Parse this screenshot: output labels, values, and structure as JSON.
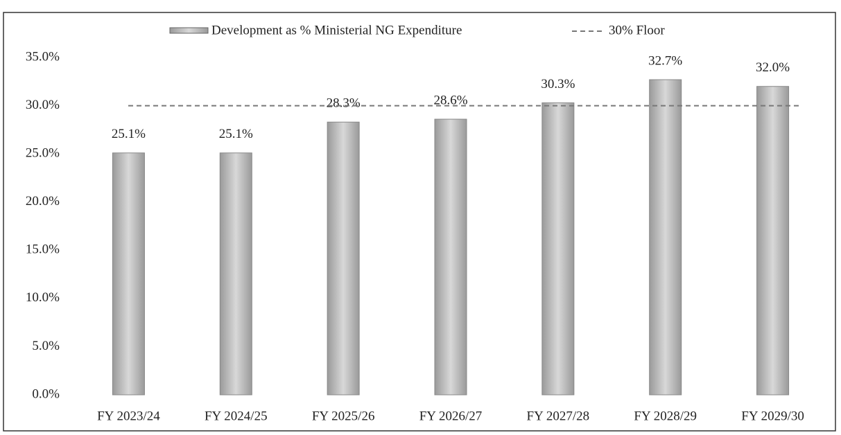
{
  "chart_data": {
    "type": "bar",
    "categories": [
      "FY 2023/24",
      "FY 2024/25",
      "FY 2025/26",
      "FY 2026/27",
      "FY 2027/28",
      "FY 2028/29",
      "FY 2029/30"
    ],
    "series": [
      {
        "name": "Development as % Ministerial NG Expenditure",
        "color": "#9a9a9a",
        "values": [
          25.1,
          25.1,
          28.3,
          28.6,
          30.3,
          32.7,
          32.0
        ],
        "value_labels": [
          "25.1%",
          "25.1%",
          "28.3%",
          "28.6%",
          "30.3%",
          "32.7%",
          "32.0%"
        ]
      }
    ],
    "reference_line": {
      "name": "30% Floor",
      "value": 30,
      "color": "#777777"
    },
    "ylim": [
      0,
      35
    ],
    "yticks": [
      {
        "value": 0,
        "label": "0.0%"
      },
      {
        "value": 5,
        "label": "5.0%"
      },
      {
        "value": 10,
        "label": "10.0%"
      },
      {
        "value": 15,
        "label": "15.0%"
      },
      {
        "value": 20,
        "label": "20.0%"
      },
      {
        "value": 25,
        "label": "25.0%"
      },
      {
        "value": 30,
        "label": "30.0%"
      },
      {
        "value": 35,
        "label": "35.0%"
      }
    ],
    "grid": false,
    "legend": "top"
  }
}
